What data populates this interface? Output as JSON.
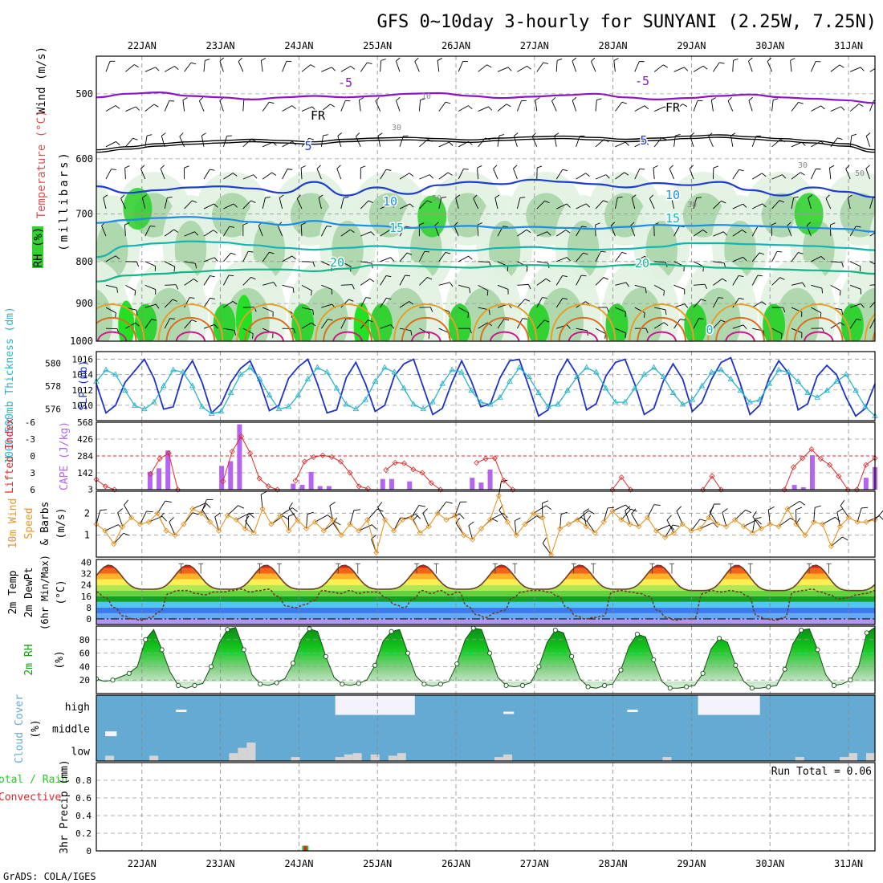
{
  "title": "GFS 0~10day 3-hourly for SUNYANI (2.25W, 7.25N)",
  "footer": "GrADS: COLA/IGES",
  "colors": {
    "rh_light": "#e3f2e3",
    "rh_mid": "#a6d2a6",
    "rh_dark": "#33d233",
    "temp_purple": "#8c14c8",
    "freezing": "#000000",
    "temp_blue": "#1e3cd2",
    "temp_lightblue": "#1e8ce6",
    "temp_teal": "#14b4b4",
    "temp_green": "#14b48c",
    "temp_orange": "#e6a028",
    "temp_darkorange": "#dc6e1e",
    "temp_magenta": "#d2148c",
    "slp": "#1e32c8",
    "thickness": "#28b4c8",
    "lifted_index": "#dc2828",
    "cape": "#b464f0",
    "wind_speed": "#e69628",
    "cloud": "#64aad2",
    "cloud_white": "#f4f2fa",
    "cloud_gray": "#d4d4d4",
    "precip_total": "#28c828",
    "precip_conv": "#dc2828"
  },
  "chart_data": [
    {
      "id": "upper_air",
      "type": "heatmap",
      "ylabel_parts": [
        "Wind (m/s)",
        "Temperature (°C)",
        "RH (%)",
        "(millibars)"
      ],
      "categories": [
        "22JAN",
        "23JAN",
        "24JAN",
        "25JAN",
        "26JAN",
        "27JAN",
        "28JAN",
        "29JAN",
        "30JAN",
        "31JAN"
      ],
      "yticks": [
        500,
        600,
        700,
        800,
        900,
        1000
      ],
      "ylim": [
        1000,
        450
      ],
      "log_pressure": true,
      "temp_contour_labels": [
        "-5",
        "-5",
        "FR",
        "FR",
        "5",
        "5",
        "10",
        "10",
        "15",
        "15",
        "20",
        "20",
        "0"
      ],
      "rh_contour_labels": [
        "10",
        "30",
        "30",
        "50",
        "50",
        "30"
      ],
      "isotherms": [
        {
          "name": "-5",
          "color": "temp_purple",
          "p": [
            505,
            500,
            498,
            503,
            505,
            508,
            505,
            503,
            505,
            503,
            500,
            499,
            503,
            506,
            504,
            502,
            500,
            505,
            508,
            506,
            503,
            501,
            505,
            507,
            509,
            513
          ]
        },
        {
          "name": "FR",
          "color": "freezing",
          "p": [
            585,
            580,
            575,
            572,
            570,
            568,
            570,
            572,
            568,
            566,
            565,
            567,
            569,
            566,
            564,
            563,
            565,
            568,
            566,
            563,
            561,
            564,
            567,
            570,
            575,
            585
          ]
        },
        {
          "name": "5",
          "color": "temp_blue",
          "p": [
            648,
            660,
            655,
            650,
            648,
            652,
            660,
            640,
            665,
            650,
            662,
            646,
            640,
            644,
            636,
            640,
            644,
            650,
            642,
            646,
            640,
            655,
            665,
            650,
            658,
            668
          ]
        },
        {
          "name": "10",
          "color": "temp_lightblue",
          "p": [
            718,
            712,
            708,
            706,
            710,
            716,
            722,
            714,
            722,
            724,
            728,
            726,
            724,
            728,
            726,
            728,
            730,
            726,
            722,
            724,
            722,
            724,
            726,
            728,
            730,
            736
          ]
        },
        {
          "name": "15",
          "color": "temp_teal",
          "p": [
            790,
            766,
            760,
            756,
            758,
            764,
            770,
            774,
            770,
            766,
            770,
            774,
            776,
            770,
            768,
            772,
            774,
            772,
            768,
            760,
            760,
            762,
            764,
            766,
            770,
            775
          ]
        },
        {
          "name": "20",
          "color": "temp_green",
          "p": [
            846,
            832,
            828,
            824,
            820,
            818,
            818,
            822,
            816,
            808,
            810,
            812,
            814,
            810,
            808,
            810,
            812,
            808,
            806,
            810,
            814,
            816,
            818,
            820,
            822,
            828
          ]
        }
      ],
      "warm_bubbles": {
        "start_day": 0.1,
        "peak_hour_offset": 0.62,
        "outer_level": 870,
        "mid_level": 915,
        "inner_level": 965
      }
    },
    {
      "id": "slp_thickness",
      "type": "line",
      "ylabel_left": "1000-500mb Thickness (dm)",
      "ylabel_right": "SLP (mb)",
      "yticks_left": [
        576,
        578,
        580
      ],
      "yticks_right": [
        1010,
        1012,
        1014,
        1016
      ],
      "ylim_left": [
        575,
        581
      ],
      "ylim_right": [
        1008,
        1017
      ],
      "series": [
        {
          "name": "SLP",
          "color": "slp",
          "values": [
            1012.8,
            1009,
            1010,
            1013,
            1014.5,
            1016,
            1013.5,
            1009.5,
            1009.8,
            1014,
            1015.8,
            1013,
            1009,
            1010.2,
            1013,
            1014.8,
            1015.8,
            1013,
            1009.3,
            1010,
            1013.5,
            1015,
            1016,
            1012.8,
            1009,
            1009.4,
            1013.6,
            1015.6,
            1012.8,
            1009.2,
            1010,
            1013.8,
            1015.4,
            1016,
            1012.4,
            1008.8,
            1009.6,
            1013,
            1015.8,
            1013.2,
            1009.8,
            1010.2,
            1013.6,
            1015.8,
            1016,
            1012.4,
            1008.6,
            1009.4,
            1013.8,
            1016,
            1014,
            1009.4,
            1010.2,
            1013.8,
            1015.6,
            1016,
            1012.8,
            1008.8,
            1009.6,
            1013.2,
            1015.4,
            1013.4,
            1009.2,
            1010.4,
            1013.4,
            1015.6,
            1016.2,
            1012.8,
            1008.8,
            1010,
            1013.6,
            1015.8,
            1014.2,
            1009.4,
            1010.2,
            1013.8,
            1015.2,
            1014,
            1011,
            1008.6,
            1009.6,
            1012.8
          ]
        },
        {
          "name": "Thickness",
          "color": "thickness",
          "values": [
            578.4,
            579.4,
            579.0,
            577.6,
            576.3,
            576.0,
            576.6,
            578.0,
            579.4,
            579.2,
            578.0,
            576.2,
            575.6,
            575.8,
            577.4,
            579.0,
            579.6,
            578.6,
            577.2,
            576.0,
            576.2,
            577.2,
            578.6,
            579.6,
            579.2,
            577.8,
            576.4,
            576.0,
            576.8,
            578.4,
            579.6,
            579.2,
            577.8,
            576.4,
            576.0,
            576.6,
            578.2,
            579.4,
            579.2,
            577.6,
            576.6,
            576.4,
            577.0,
            578.4,
            579.6,
            578.8,
            577.4,
            576.2,
            576.4,
            577.6,
            578.8,
            579.6,
            579.2,
            577.8,
            576.6,
            576.6,
            577.8,
            579.0,
            579.6,
            578.8,
            577.4,
            576.4,
            576.8,
            578.0,
            579.2,
            579.4,
            578.6,
            577.6,
            576.6,
            576.8,
            578.2,
            579.4,
            579.2,
            578.4,
            577.4,
            577.0,
            577.6,
            578.4,
            579.0,
            577.6,
            576.2,
            575.4
          ]
        }
      ]
    },
    {
      "id": "cape_li",
      "type": "bar",
      "ylabel_left": "Lifted Index",
      "ylabel_right": "CAPE (J/kg)",
      "yticks_left": [
        -6,
        -3,
        0,
        3,
        6
      ],
      "yticks_right": [
        3,
        142,
        284,
        426,
        568
      ],
      "ylim_left": [
        6,
        -6
      ],
      "ylim_right": [
        0,
        568
      ],
      "series": [
        {
          "name": "Lifted Index",
          "color": "lifted_index",
          "values": [
            4.2,
            5.4,
            6.0,
            null,
            null,
            null,
            3.2,
            0.5,
            -0.5,
            6,
            null,
            null,
            null,
            null,
            4.5,
            -0.8,
            -3.5,
            -0.5,
            4.0,
            5.4,
            6,
            null,
            4.4,
            1.0,
            0.2,
            -0.1,
            0.2,
            1.0,
            3.0,
            5.4,
            5.8,
            null,
            2.5,
            1.2,
            1.3,
            2.4,
            3.0,
            4.8,
            6,
            null,
            null,
            null,
            1.2,
            0.5,
            0.4,
            4.4,
            6,
            null,
            null,
            null,
            null,
            null,
            null,
            null,
            null,
            null,
            null,
            6,
            3.8,
            6,
            null,
            null,
            null,
            null,
            null,
            null,
            null,
            6,
            3.6,
            6,
            null,
            null,
            null,
            null,
            null,
            null,
            6,
            2.0,
            0.4,
            -1.2,
            0.5,
            1.6,
            3.6,
            6,
            6,
            1.6,
            0.4
          ]
        },
        {
          "name": "CAPE",
          "color": "cape",
          "values": [
            0,
            0,
            0,
            0,
            0,
            0,
            150,
            180,
            330,
            0,
            0,
            0,
            0,
            0,
            200,
            240,
            550,
            0,
            0,
            0,
            0,
            0,
            50,
            40,
            150,
            30,
            30,
            0,
            0,
            0,
            0,
            0,
            90,
            90,
            0,
            70,
            0,
            0,
            0,
            0,
            0,
            0,
            100,
            60,
            170,
            0,
            0,
            0,
            0,
            0,
            0,
            0,
            0,
            0,
            0,
            0,
            0,
            0,
            0,
            0,
            0,
            0,
            0,
            0,
            0,
            0,
            0,
            0,
            0,
            0,
            0,
            0,
            0,
            0,
            0,
            0,
            0,
            0,
            40,
            20,
            290,
            0,
            0,
            0,
            0,
            0,
            100,
            190
          ]
        }
      ]
    },
    {
      "id": "wind10m",
      "type": "line",
      "ylabel": "10m Wind Speed & Barbs (m/s)",
      "yticks": [
        1,
        2
      ],
      "ylim": [
        0,
        3
      ],
      "series": [
        {
          "name": "Speed",
          "color": "wind_speed",
          "values": [
            1.5,
            1.2,
            0.6,
            1.4,
            1.8,
            1.5,
            1.6,
            2.0,
            1.2,
            1.0,
            1.5,
            2.2,
            2.0,
            1.6,
            1.2,
            1.9,
            1.7,
            1.3,
            1.1,
            2.2,
            1.5,
            1.9,
            1.2,
            1.7,
            1.3,
            1.6,
            1.2,
            1.7,
            1.0,
            1.5,
            1.2,
            1.7,
            0.2,
            1.7,
            1.2,
            1.7,
            1.8,
            1.1,
            1.4,
            2.0,
            1.7,
            1.9,
            1.0,
            0.8,
            1.3,
            1.7,
            2.8,
            1.6,
            1.0,
            1.5,
            2.0,
            1.8,
            0.1,
            1.3,
            1.5,
            1.7,
            1.4,
            1.1,
            1.6,
            2.1,
            1.7,
            1.5,
            1.4,
            1.8,
            1.2,
            0.9,
            1.1,
            1.5,
            1.2,
            1.3,
            1.8,
            1.5,
            1.4,
            1.7,
            1.4,
            1.1,
            1.3,
            1.5,
            1.4,
            2.2,
            1.5,
            1.0,
            1.6,
            1.5,
            0.5,
            1.4,
            1.8,
            1.6,
            1.6,
            1.7
          ]
        }
      ]
    },
    {
      "id": "temp2m",
      "type": "area",
      "ylabel": "2m Temp 2m DewPt (6hr Min/Max) (°C)",
      "yticks": [
        0,
        8,
        16,
        24,
        32,
        40
      ],
      "ylim": [
        -4,
        42
      ],
      "temp_bands": [
        {
          "from": -4,
          "to": 0,
          "color": "#b496f0"
        },
        {
          "from": 0,
          "to": 4,
          "color": "#64aaf0"
        },
        {
          "from": 4,
          "to": 8,
          "color": "#3c78f0"
        },
        {
          "from": 8,
          "to": 12,
          "color": "#50c8f0"
        },
        {
          "from": 12,
          "to": 16,
          "color": "#14a028"
        },
        {
          "from": 16,
          "to": 20,
          "color": "#64d23c"
        },
        {
          "from": 20,
          "to": 24,
          "color": "#b4e650"
        },
        {
          "from": 24,
          "to": 28,
          "color": "#fff050"
        },
        {
          "from": 28,
          "to": 32,
          "color": "#ffb428"
        },
        {
          "from": 32,
          "to": 36,
          "color": "#f56414"
        },
        {
          "from": 36,
          "to": 40,
          "color": "#e61e1e"
        },
        {
          "from": 40,
          "to": 44,
          "color": "#b40a0a"
        }
      ],
      "daily_max": [
        38,
        38,
        38,
        38,
        38,
        38,
        38,
        38,
        38,
        38
      ],
      "daily_min": [
        21,
        21,
        21,
        21,
        21,
        21,
        21,
        20,
        20,
        20
      ],
      "dewpoint": [
        19,
        15,
        8,
        2,
        0,
        -1,
        1,
        5,
        18,
        20,
        20,
        18,
        17,
        19,
        19,
        20,
        21,
        19,
        20,
        21,
        16,
        9,
        8,
        10,
        13,
        20,
        19,
        18,
        20,
        18,
        19,
        19,
        15,
        10,
        8,
        14,
        20,
        18,
        20,
        17,
        19,
        9,
        3,
        1,
        4,
        6,
        15,
        19,
        20,
        20,
        19,
        16,
        8,
        2,
        0,
        1,
        2,
        19,
        20,
        19,
        18,
        16,
        6,
        1,
        -1,
        0,
        0,
        18,
        20,
        19,
        20,
        19,
        16,
        2,
        0,
        -1,
        1,
        19,
        20,
        21,
        19,
        17,
        14,
        15,
        17,
        18,
        20
      ]
    },
    {
      "id": "rh2m",
      "type": "area",
      "ylabel": "2m RH (%)",
      "yticks": [
        20,
        40,
        60,
        80
      ],
      "ylim": [
        0,
        100
      ],
      "values": [
        22,
        18,
        20,
        25,
        30,
        40,
        80,
        95,
        65,
        32,
        12,
        8,
        12,
        15,
        40,
        75,
        95,
        98,
        65,
        28,
        14,
        12,
        16,
        22,
        45,
        80,
        96,
        92,
        55,
        24,
        14,
        12,
        15,
        20,
        42,
        78,
        92,
        95,
        60,
        26,
        14,
        11,
        14,
        18,
        44,
        80,
        97,
        95,
        60,
        24,
        12,
        10,
        12,
        16,
        40,
        76,
        94,
        90,
        55,
        22,
        10,
        8,
        12,
        14,
        35,
        70,
        88,
        84,
        50,
        18,
        8,
        8,
        10,
        12,
        30,
        66,
        82,
        76,
        42,
        18,
        8,
        8,
        10,
        12,
        36,
        74,
        94,
        96,
        65,
        28,
        12,
        14,
        20,
        40,
        90,
        98
      ]
    },
    {
      "id": "cloud",
      "type": "heatmap",
      "ylabel": "Cloud Cover (%)",
      "levels": [
        "high",
        "middle",
        "low"
      ]
    },
    {
      "id": "precip",
      "type": "bar",
      "ylabel": "3hr Precip (mm)",
      "ylabel_left": "Total / Rain Convective",
      "yticks": [
        0,
        0.2,
        0.4,
        0.6,
        0.8
      ],
      "ylim": [
        0,
        1.0
      ],
      "run_total": "Run Total = 0.06",
      "bar_index": 16,
      "total": 0.04,
      "convective": 0.02
    }
  ]
}
